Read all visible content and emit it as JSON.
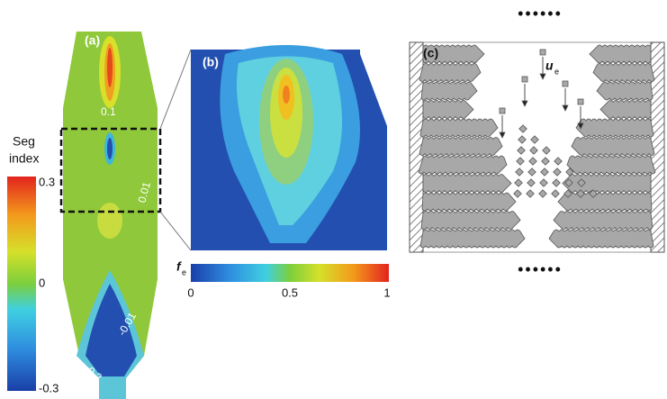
{
  "panels": {
    "a": {
      "label": "(a)",
      "colorbar": {
        "title": [
          "Seg",
          "index"
        ],
        "ticks": [
          "0.3",
          "0",
          "-0.3"
        ]
      },
      "contour_labels": [
        "0.1",
        "0.01",
        "-0.01",
        "-0.2"
      ]
    },
    "b": {
      "label": "(b)",
      "colorbar": {
        "symbol": "f",
        "subscript": "e",
        "ticks": [
          "0",
          "0.5",
          "1"
        ]
      }
    },
    "c": {
      "label": "(c)",
      "velocity": {
        "symbol": "u",
        "subscript": "e"
      }
    }
  }
}
